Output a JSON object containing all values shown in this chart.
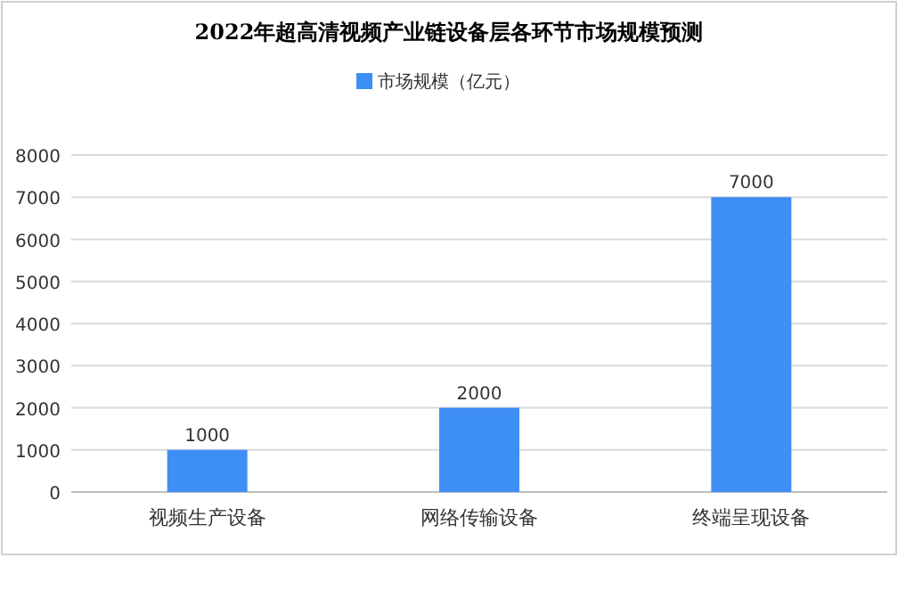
{
  "chart_data": {
    "type": "bar",
    "title": "2022年超高清视频产业链设备层各环节市场规模预测",
    "categories": [
      "视频生产设备",
      "网络传输设备",
      "终端呈现设备"
    ],
    "series": [
      {
        "name": "市场规模（亿元）",
        "color": "#3d8ef5",
        "values": [
          1000,
          2000,
          7000
        ]
      }
    ],
    "ylim": [
      0,
      8000
    ],
    "yticks": [
      0,
      1000,
      2000,
      3000,
      4000,
      5000,
      6000,
      7000,
      8000
    ],
    "grid": "y",
    "legend": "top",
    "data_labels": true
  }
}
